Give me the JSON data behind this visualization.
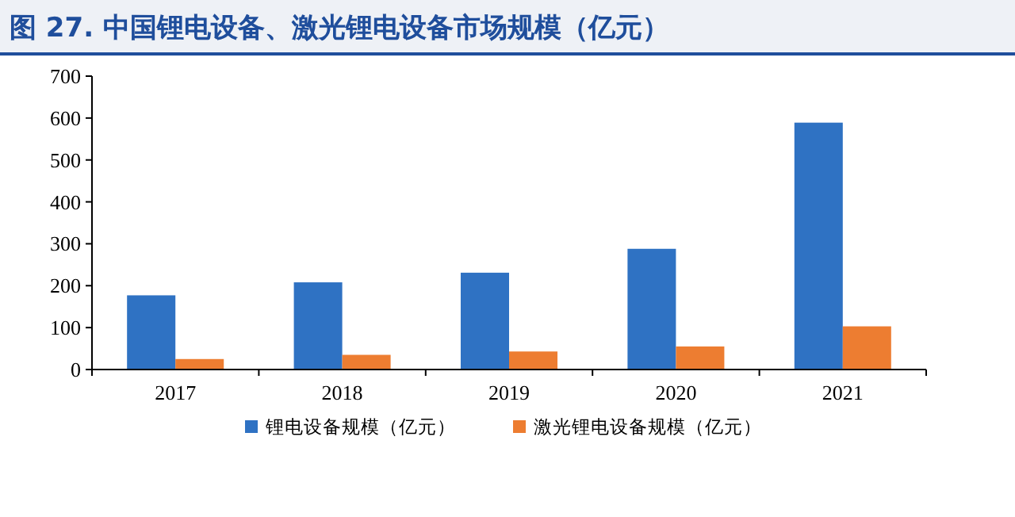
{
  "chart_data": {
    "type": "bar",
    "title": "图 27. 中国锂电设备、激光锂电设备市场规模（亿元）",
    "categories": [
      "2017",
      "2018",
      "2019",
      "2020",
      "2021"
    ],
    "series": [
      {
        "name": "锂电设备规模（亿元）",
        "color": "#2f72c3",
        "values": [
          177,
          208,
          231,
          288,
          589
        ]
      },
      {
        "name": "激光锂电设备规模（亿元）",
        "color": "#ed7d31",
        "values": [
          25,
          35,
          43,
          55,
          103
        ]
      }
    ],
    "ylim": [
      0,
      700
    ],
    "yticks": [
      0,
      100,
      200,
      300,
      400,
      500,
      600,
      700
    ],
    "grid": false,
    "legend": "bottom"
  }
}
